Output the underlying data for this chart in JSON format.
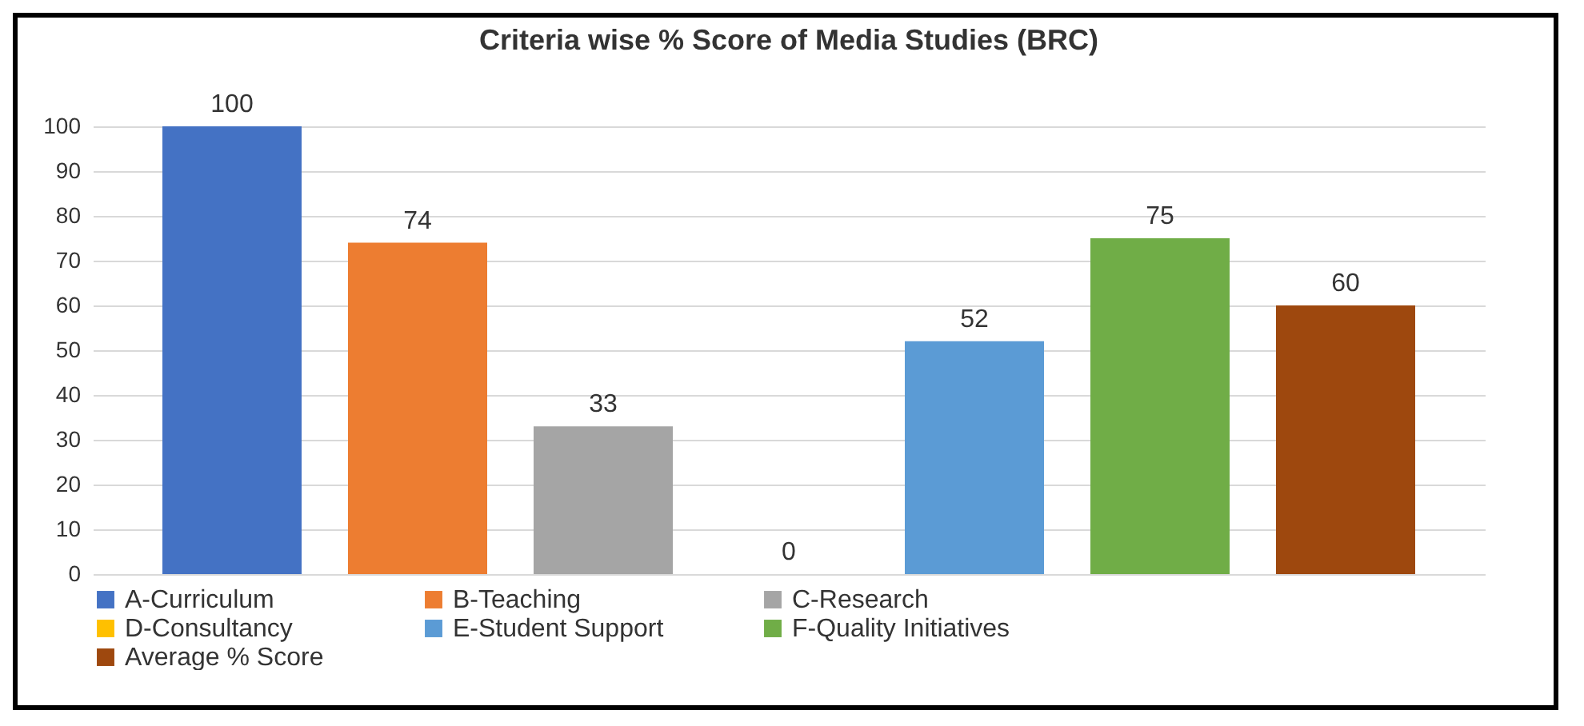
{
  "chart_data": {
    "type": "bar",
    "title": "Criteria wise % Score of Media Studies (BRC)",
    "categories": [
      null
    ],
    "series": [
      {
        "name": "A-Curriculum",
        "color": "#4472c4",
        "values": [
          100
        ]
      },
      {
        "name": "B-Teaching",
        "color": "#ed7d31",
        "values": [
          74
        ]
      },
      {
        "name": "C-Research",
        "color": "#a5a5a5",
        "values": [
          33
        ]
      },
      {
        "name": "D-Consultancy",
        "color": "#ffc000",
        "values": [
          0
        ]
      },
      {
        "name": "E-Student Support",
        "color": "#5b9bd5",
        "values": [
          52
        ]
      },
      {
        "name": "F-Quality Initiatives",
        "color": "#70ad47",
        "values": [
          75
        ]
      },
      {
        "name": "Average % Score",
        "color": "#9e480e",
        "values": [
          60
        ]
      }
    ],
    "ylim": [
      0,
      100
    ],
    "yticks": [
      0,
      10,
      20,
      30,
      40,
      50,
      60,
      70,
      80,
      90,
      100
    ],
    "grid": "y",
    "legend": "bottom",
    "data_labels": true
  }
}
